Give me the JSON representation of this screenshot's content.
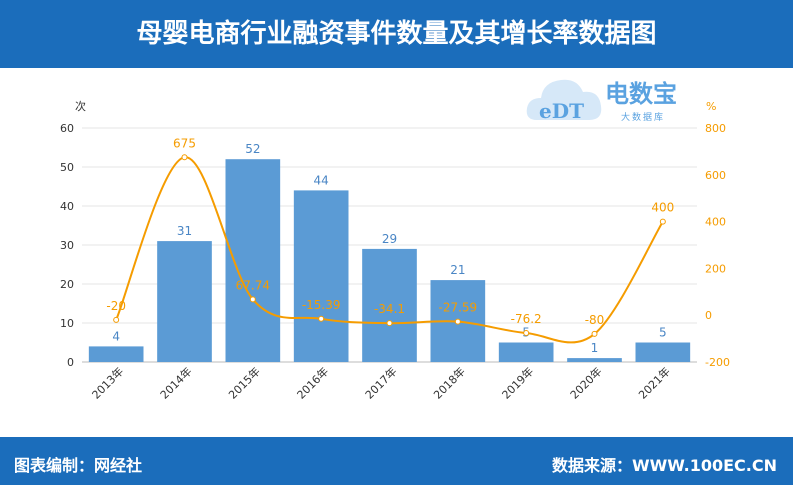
{
  "header": {
    "title": "母婴电商行业融资事件数量及其增长率数据图"
  },
  "footer": {
    "left": "图表编制：网经社",
    "right": "数据来源：WWW.100EC.CN"
  },
  "logo": {
    "mark": "eDT",
    "brand": "电数宝",
    "sub": "大数据库"
  },
  "colors": {
    "header": "#1b6dbb",
    "bar": "#5b9bd5",
    "line": "#f59c00"
  },
  "chart_data": {
    "type": "bar+line",
    "title": "母婴电商行业融资事件数量及其增长率数据图",
    "categories": [
      "2013年",
      "2014年",
      "2015年",
      "2016年",
      "2017年",
      "2018年",
      "2019年",
      "2020年",
      "2021年"
    ],
    "series": [
      {
        "name": "融资事件数量",
        "axis": "left",
        "type": "bar",
        "values": [
          4,
          31,
          52,
          44,
          29,
          21,
          5,
          1,
          5
        ]
      },
      {
        "name": "增长率",
        "axis": "right",
        "type": "line",
        "values": [
          -20,
          675,
          67.74,
          -15.39,
          -34.1,
          -27.59,
          -76.2,
          -80,
          400
        ],
        "labels": [
          "-20",
          "675",
          "67.74",
          "-15.39",
          "-34.1",
          "-27.59",
          "-76.2",
          "-80",
          "400"
        ]
      }
    ],
    "ylabel": "次",
    "y2label": "%",
    "ylim": [
      0,
      60
    ],
    "yticks": [
      0,
      10,
      20,
      30,
      40,
      50,
      60
    ],
    "y2lim": [
      -200,
      800
    ],
    "y2ticks": [
      -200,
      0,
      200,
      400,
      600,
      800
    ],
    "grid": true
  }
}
